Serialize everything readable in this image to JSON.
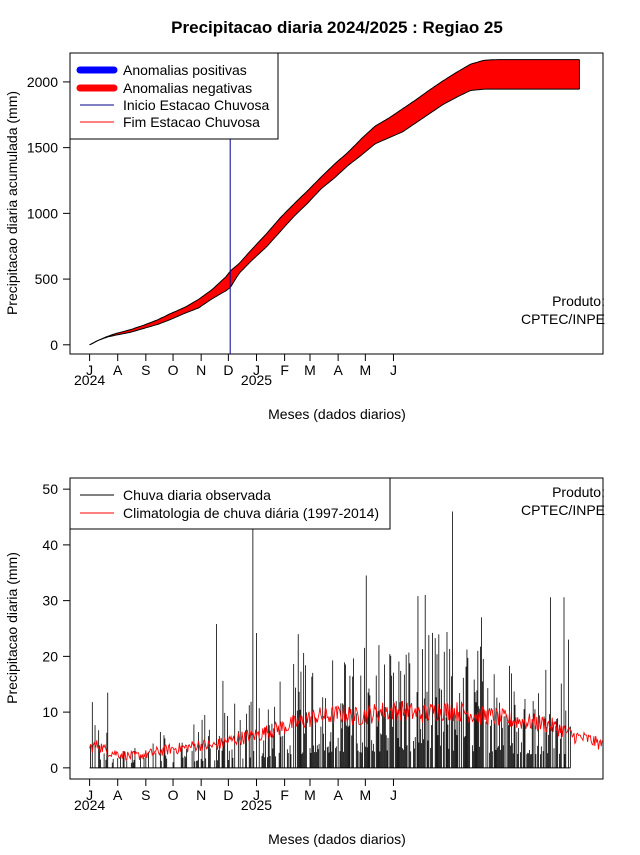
{
  "page_title": "Precipitacao diaria 2024/2025 : Regiao 25",
  "credit": {
    "line1": "Produto:",
    "line2": "CPTEC/INPE"
  },
  "colors": {
    "positive": "#0000ff",
    "negative": "#ff0000",
    "season_start": "#00008b",
    "season_end": "#ff0000",
    "observed": "#000000",
    "climatology": "#ff0000"
  },
  "chart_data": [
    {
      "type": "area",
      "xlabel": "Meses (dados diarios)",
      "ylabel": "Precipitacao diaria acumulada (mm)",
      "ylim": [
        -70,
        2220
      ],
      "yticks": [
        0,
        500,
        1000,
        1500,
        2000
      ],
      "month_ticks": [
        "J",
        "A",
        "S",
        "O",
        "N",
        "D",
        "J",
        "F",
        "M",
        "A",
        "M",
        "J"
      ],
      "year_labels": [
        "2024",
        "2025"
      ],
      "legend": {
        "placement": "top-left",
        "entries": [
          {
            "label": "Anomalias positivas",
            "style": "thick",
            "color_key": "positive"
          },
          {
            "label": "Anomalias negativas",
            "style": "thick",
            "color_key": "negative"
          },
          {
            "label": "Inicio Estacao Chuvosa",
            "style": "thin",
            "color_key": "season_start"
          },
          {
            "label": "Fim Estacao Chuvosa",
            "style": "thin",
            "color_key": "season_end"
          }
        ]
      },
      "season_start_day": 155,
      "days": [
        0,
        10,
        20,
        30,
        45,
        60,
        75,
        90,
        105,
        120,
        135,
        150,
        155,
        165,
        180,
        195,
        210,
        225,
        240,
        255,
        270,
        285,
        300,
        315,
        330,
        345,
        360,
        375,
        390,
        405,
        420,
        435,
        450,
        465,
        480,
        495,
        510,
        525,
        535,
        540
      ],
      "climatology_cumulative": [
        0,
        35,
        65,
        88,
        115,
        150,
        190,
        240,
        285,
        345,
        420,
        515,
        560,
        620,
        735,
        845,
        965,
        1070,
        1170,
        1275,
        1375,
        1465,
        1570,
        1665,
        1725,
        1795,
        1865,
        1940,
        2010,
        2075,
        2135,
        2165,
        2170,
        2170,
        2170,
        2170,
        2170,
        2170,
        2170,
        2170
      ],
      "observed_cumulative": [
        0,
        35,
        60,
        75,
        95,
        125,
        155,
        195,
        240,
        280,
        350,
        410,
        435,
        545,
        650,
        745,
        860,
        975,
        1075,
        1185,
        1270,
        1365,
        1445,
        1530,
        1575,
        1620,
        1690,
        1760,
        1830,
        1885,
        1935,
        1945,
        1945,
        1945,
        1945,
        1945,
        1945,
        1945,
        1945,
        1945
      ],
      "x_days_plotted": [
        0,
        540
      ]
    },
    {
      "type": "bar",
      "xlabel": "Meses (dados diarios)",
      "ylabel": "Precipitacao diaria (mm)",
      "ylim": [
        -2,
        52
      ],
      "yticks": [
        0,
        10,
        20,
        30,
        40,
        50
      ],
      "month_ticks": [
        "J",
        "A",
        "S",
        "O",
        "N",
        "D",
        "J",
        "F",
        "M",
        "A",
        "M",
        "J"
      ],
      "year_labels": [
        "2024",
        "2025"
      ],
      "legend": {
        "placement": "top-left",
        "entries": [
          {
            "label": "Chuva diaria observada",
            "style": "thin",
            "color_key": "observed"
          },
          {
            "label": "Climatologia de chuva diária (1997-2014)",
            "style": "thin",
            "color_key": "climatology"
          }
        ]
      },
      "notable_observed": [
        {
          "day": 3,
          "value": 11.8
        },
        {
          "day": 20,
          "value": 13.5
        },
        {
          "day": 140,
          "value": 25.8
        },
        {
          "day": 147,
          "value": 15.6
        },
        {
          "day": 180,
          "value": 43.0
        },
        {
          "day": 184,
          "value": 24.2
        },
        {
          "day": 230,
          "value": 24.0
        },
        {
          "day": 305,
          "value": 34.5
        },
        {
          "day": 362,
          "value": 30.8
        },
        {
          "day": 370,
          "value": 31.0
        },
        {
          "day": 400,
          "value": 46.0
        },
        {
          "day": 432,
          "value": 27.0
        },
        {
          "day": 508,
          "value": 30.6
        },
        {
          "day": 523,
          "value": 30.6
        },
        {
          "day": 528,
          "value": 23.0
        }
      ],
      "climatology_days": [
        0,
        10,
        20,
        30,
        45,
        60,
        75,
        90,
        105,
        120,
        135,
        150,
        160,
        175,
        190,
        205,
        220,
        235,
        250,
        265,
        280,
        295,
        310,
        325,
        340,
        355,
        370,
        385,
        400,
        415,
        430,
        445,
        460,
        475,
        490,
        505,
        520,
        535,
        550,
        565
      ],
      "climatology_values": [
        3.5,
        4.0,
        2.8,
        2.5,
        2.0,
        2.2,
        2.8,
        3.3,
        3.5,
        4.0,
        3.8,
        4.5,
        5.0,
        5.5,
        6.0,
        6.8,
        7.5,
        8.3,
        9.0,
        9.2,
        9.5,
        9.0,
        9.5,
        10.0,
        10.2,
        9.8,
        9.5,
        10.2,
        10.0,
        9.8,
        9.2,
        9.0,
        8.6,
        8.2,
        8.0,
        7.6,
        6.8,
        5.5,
        5.0,
        4.0
      ]
    }
  ]
}
